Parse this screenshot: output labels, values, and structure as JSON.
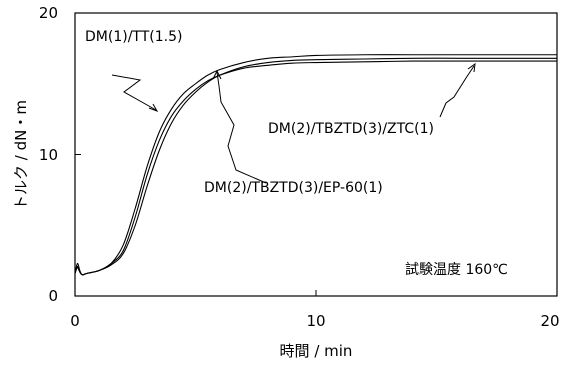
{
  "chart_data": {
    "type": "line",
    "title": "",
    "xlabel": "時間 / min",
    "ylabel": "トルク / dN・m",
    "xlim": [
      0,
      20
    ],
    "ylim": [
      0,
      20
    ],
    "xticks": [
      "0",
      "10",
      "20"
    ],
    "yticks": [
      "0",
      "10",
      "20"
    ],
    "grid": false,
    "annotation": "試験温度 160℃",
    "series": [
      {
        "name": "DM(1)/TT(1.5)",
        "x": [
          0,
          0.1,
          0.2,
          0.3,
          0.5,
          1.0,
          1.5,
          2.0,
          2.5,
          3.0,
          3.5,
          4.0,
          4.5,
          5.0,
          5.5,
          6.0,
          7.0,
          8.0,
          9.0,
          10.0,
          12.0,
          14.0,
          16.0,
          18.0,
          20.0
        ],
        "y": [
          1.6,
          2.3,
          1.8,
          1.5,
          1.6,
          1.8,
          2.3,
          3.6,
          6.2,
          9.2,
          11.6,
          13.2,
          14.3,
          15.0,
          15.6,
          16.0,
          16.5,
          16.8,
          16.9,
          17.0,
          17.05,
          17.05,
          17.05,
          17.05,
          17.05
        ]
      },
      {
        "name": "DM(2)/TBZTD(3)/ZTC(1)",
        "x": [
          0,
          0.1,
          0.2,
          0.3,
          0.5,
          1.0,
          1.5,
          2.0,
          2.5,
          3.0,
          3.5,
          4.0,
          4.5,
          5.0,
          5.5,
          6.0,
          7.0,
          8.0,
          9.0,
          10.0,
          12.0,
          14.0,
          16.0,
          18.0,
          20.0
        ],
        "y": [
          1.6,
          2.0,
          1.7,
          1.5,
          1.6,
          1.8,
          2.2,
          3.0,
          5.0,
          7.8,
          10.3,
          12.2,
          13.5,
          14.4,
          15.1,
          15.6,
          16.2,
          16.5,
          16.65,
          16.7,
          16.75,
          16.8,
          16.8,
          16.8,
          16.8
        ]
      },
      {
        "name": "DM(2)/TBZTD(3)/EP-60(1)",
        "x": [
          0,
          0.1,
          0.2,
          0.3,
          0.5,
          1.0,
          1.5,
          2.0,
          2.5,
          3.0,
          3.5,
          4.0,
          4.5,
          5.0,
          5.5,
          6.0,
          7.0,
          8.0,
          9.0,
          10.0,
          12.0,
          14.0,
          16.0,
          18.0,
          20.0
        ],
        "y": [
          1.6,
          2.1,
          1.7,
          1.5,
          1.6,
          1.8,
          2.3,
          3.2,
          5.6,
          8.6,
          11.0,
          12.7,
          13.8,
          14.6,
          15.2,
          15.6,
          16.1,
          16.3,
          16.45,
          16.5,
          16.55,
          16.6,
          16.6,
          16.6,
          16.6
        ]
      }
    ],
    "labels": [
      {
        "text": "DM(1)/TT(1.5)",
        "series": 0
      },
      {
        "text": "DM(2)/TBZTD(3)/ZTC(1)",
        "series": 1
      },
      {
        "text": "DM(2)/TBZTD(3)/EP-60(1)",
        "series": 2
      }
    ]
  }
}
